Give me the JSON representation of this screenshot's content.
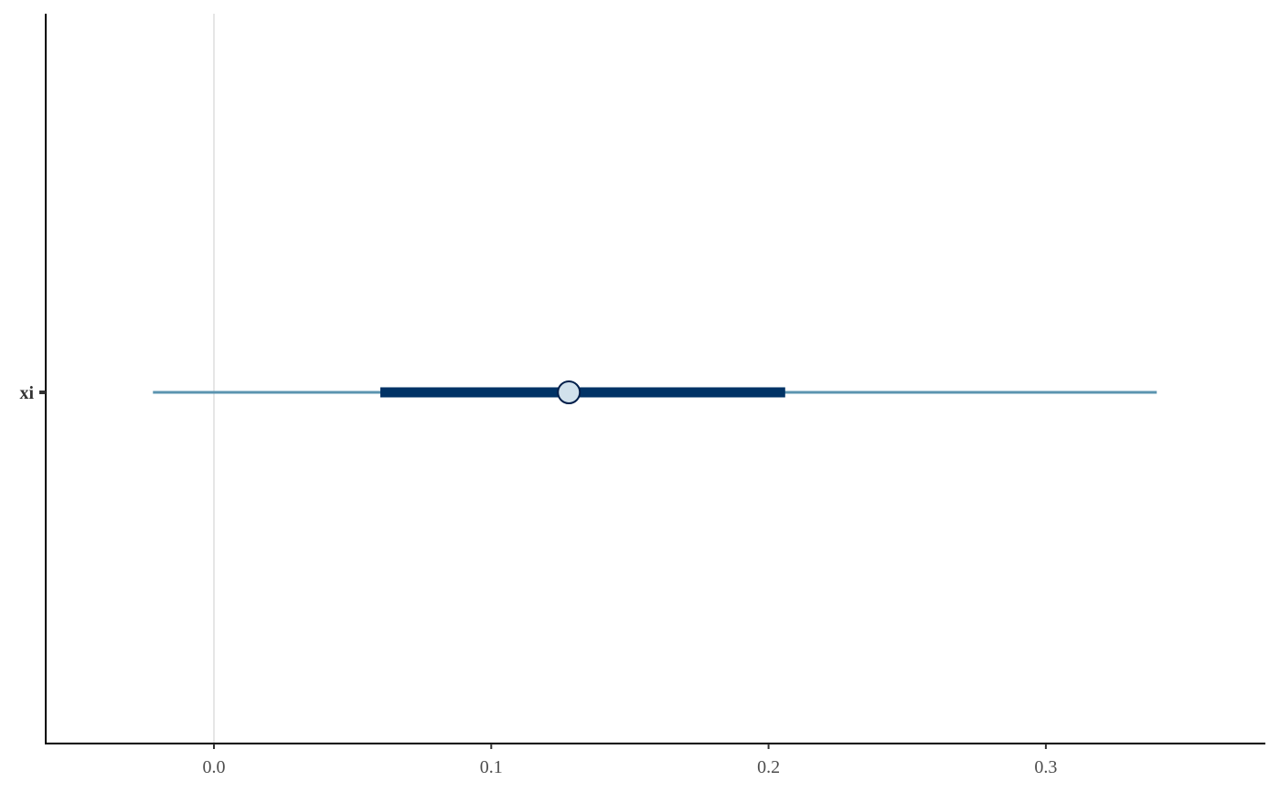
{
  "chart_data": {
    "type": "interval",
    "title": "",
    "xlabel": "",
    "ylabel": "",
    "xlim": [
      -0.06,
      0.378
    ],
    "x_ticks": [
      0.0,
      0.1,
      0.2,
      0.3
    ],
    "x_tick_labels": [
      "0.0",
      "0.1",
      "0.2",
      "0.3"
    ],
    "reference_line": 0.0,
    "grid": false,
    "categories": [
      "xi"
    ],
    "intervals": [
      {
        "label": "xi",
        "point": 0.128,
        "inner": [
          0.06,
          0.206
        ],
        "outer": [
          -0.022,
          0.34
        ]
      }
    ],
    "colors": {
      "outer_line": "#5b94b0",
      "inner_line": "#003366",
      "point_fill": "#d1e1ec",
      "point_stroke": "#011f4b",
      "reference_line": "#e6e6e6",
      "axis": "#000000"
    }
  }
}
